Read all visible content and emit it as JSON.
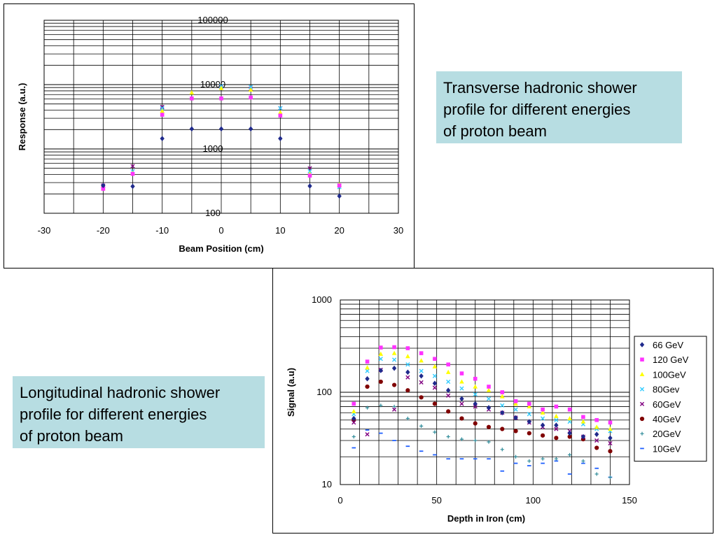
{
  "captions": {
    "transverse": [
      "Transverse hadronic shower",
      "profile for different energies",
      "of proton beam"
    ],
    "longitudinal": [
      "Longitudinal hadronic shower",
      "profile for different energies",
      "of proton beam"
    ]
  },
  "colors": {
    "66 GeV": "#1f2a8c",
    "120 GeV": "#ff33ff",
    "100GeV": "#ffff00",
    "80Gev": "#33ccff",
    "60GeV": "#800080",
    "40GeV": "#800000",
    "20GeV": "#2e8b99",
    "10GeV": "#1f5fff"
  },
  "chart_data": [
    {
      "type": "scatter",
      "title": "",
      "xlabel": "Beam Position (cm)",
      "ylabel": "Response (a.u.)",
      "xlim": [
        -30,
        30
      ],
      "ylim": [
        100,
        100000
      ],
      "y_scale": "log",
      "grid": true,
      "xticks": [
        "-30",
        "-20",
        "-10",
        "0",
        "10",
        "20",
        "30"
      ],
      "yticks": [
        "100",
        "1000",
        "10000",
        "100000"
      ],
      "series": [
        {
          "marker": "diamond",
          "color": "#1f2a8c",
          "x": [
            -20,
            -15,
            -10,
            -5,
            0,
            5,
            10,
            15,
            20
          ],
          "y": [
            270,
            262,
            1450,
            2050,
            2050,
            2050,
            1450,
            265,
            185
          ]
        },
        {
          "marker": "square",
          "color": "#ff33ff",
          "x": [
            -20,
            -15,
            -10,
            -5,
            0,
            5,
            10,
            15,
            20
          ],
          "y": [
            240,
            410,
            3400,
            6100,
            6100,
            6300,
            3300,
            385,
            270
          ]
        },
        {
          "marker": "triangle",
          "color": "#ffff00",
          "x": [
            -20,
            -15,
            -10,
            -5,
            0,
            5,
            10,
            15,
            20
          ],
          "y": [
            245,
            420,
            3900,
            7500,
            8800,
            8300,
            3700,
            410,
            280
          ]
        },
        {
          "marker": "x",
          "color": "#33ccff",
          "x": [
            -20,
            -15,
            -10,
            0,
            5,
            10,
            15,
            20
          ],
          "y": [
            260,
            450,
            4300,
            9500,
            9200,
            4300,
            450,
            255
          ]
        },
        {
          "marker": "x",
          "color": "#800080",
          "x": [
            -20,
            -15,
            -10,
            0,
            5,
            10,
            15,
            20
          ],
          "y": [
            270,
            540,
            4500,
            9300,
            8600,
            4300,
            500,
            270
          ]
        }
      ]
    },
    {
      "type": "scatter",
      "title": "",
      "xlabel": "Depth in Iron (cm)",
      "ylabel": "Signal (a.u)",
      "xlim": [
        0,
        150
      ],
      "ylim": [
        10,
        1000
      ],
      "y_scale": "log",
      "grid": true,
      "xticks": [
        "0",
        "50",
        "100",
        "150"
      ],
      "yticks": [
        "10",
        "100",
        "1000"
      ],
      "legend": "right",
      "x": [
        7,
        14,
        21,
        28,
        35,
        42,
        49,
        56,
        63,
        70,
        77,
        84,
        91,
        98,
        105,
        112,
        119,
        126,
        133,
        140
      ],
      "series": [
        {
          "name": "66 GeV",
          "marker": "diamond",
          "color": "#1f2a8c",
          "values": [
            52,
            140,
            172,
            182,
            165,
            150,
            125,
            105,
            85,
            75,
            68,
            60,
            53,
            48,
            44,
            44,
            36,
            33,
            35,
            32
          ]
        },
        {
          "name": "120 GeV",
          "marker": "square",
          "color": "#ff33ff",
          "values": [
            75,
            215,
            305,
            308,
            300,
            265,
            230,
            200,
            160,
            140,
            115,
            100,
            80,
            75,
            65,
            70,
            65,
            54,
            50,
            47
          ]
        },
        {
          "name": "100GeV",
          "marker": "triangle",
          "color": "#ffff00",
          "values": [
            62,
            185,
            260,
            265,
            245,
            220,
            190,
            165,
            130,
            115,
            105,
            90,
            75,
            70,
            60,
            55,
            52,
            48,
            42,
            40
          ]
        },
        {
          "name": "80Gev",
          "marker": "x",
          "color": "#33ccff",
          "values": [
            58,
            170,
            230,
            225,
            200,
            170,
            150,
            130,
            110,
            95,
            85,
            72,
            65,
            58,
            52,
            50,
            48,
            45,
            40,
            38
          ]
        },
        {
          "name": "60GeV",
          "marker": "x",
          "color": "#800080",
          "values": [
            47,
            35,
            175,
            65,
            145,
            128,
            112,
            92,
            75,
            70,
            65,
            60,
            53,
            47,
            42,
            40,
            38,
            33,
            30,
            28
          ]
        },
        {
          "name": "40GeV",
          "marker": "circle",
          "color": "#800000",
          "values": [
            50,
            115,
            130,
            120,
            105,
            88,
            75,
            62,
            52,
            46,
            42,
            40,
            38,
            36,
            34,
            32,
            33,
            31,
            25,
            23
          ]
        },
        {
          "name": "20GeV",
          "marker": "plus",
          "color": "#2e8b99",
          "values": [
            33,
            68,
            72,
            70,
            52,
            43,
            37,
            33,
            31,
            30,
            29,
            24,
            20,
            18,
            19,
            19,
            21,
            18,
            13,
            12
          ]
        },
        {
          "name": "10GeV",
          "marker": "dash",
          "color": "#1f5fff",
          "values": [
            25,
            39,
            36,
            30,
            26,
            23,
            21,
            19,
            19,
            19,
            19,
            14,
            17,
            16,
            17,
            18,
            13,
            17,
            15,
            12
          ]
        }
      ]
    }
  ]
}
